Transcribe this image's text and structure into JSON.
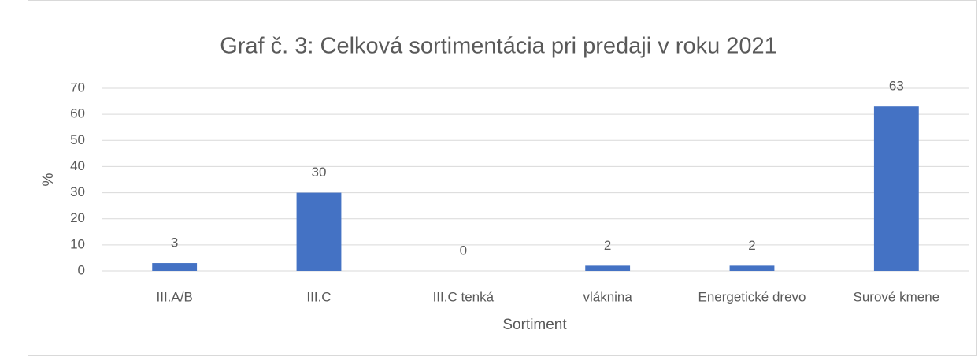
{
  "chart_data": {
    "type": "bar",
    "title": "Graf č. 3: Celková sortimentácia pri predaji v roku 2021",
    "x_label": "Sortiment",
    "y_label": "%",
    "categories": [
      "III.A/B",
      "III.C",
      "III.C tenká",
      "vláknina",
      "Energetické drevo",
      "Surové kmene"
    ],
    "values": [
      3,
      30,
      0,
      2,
      2,
      63
    ],
    "color": "#4472c4",
    "ylim": [
      0,
      70
    ],
    "yticks": [
      0,
      10,
      20,
      30,
      40,
      50,
      60,
      70
    ],
    "grid": true,
    "data_labels": true
  }
}
